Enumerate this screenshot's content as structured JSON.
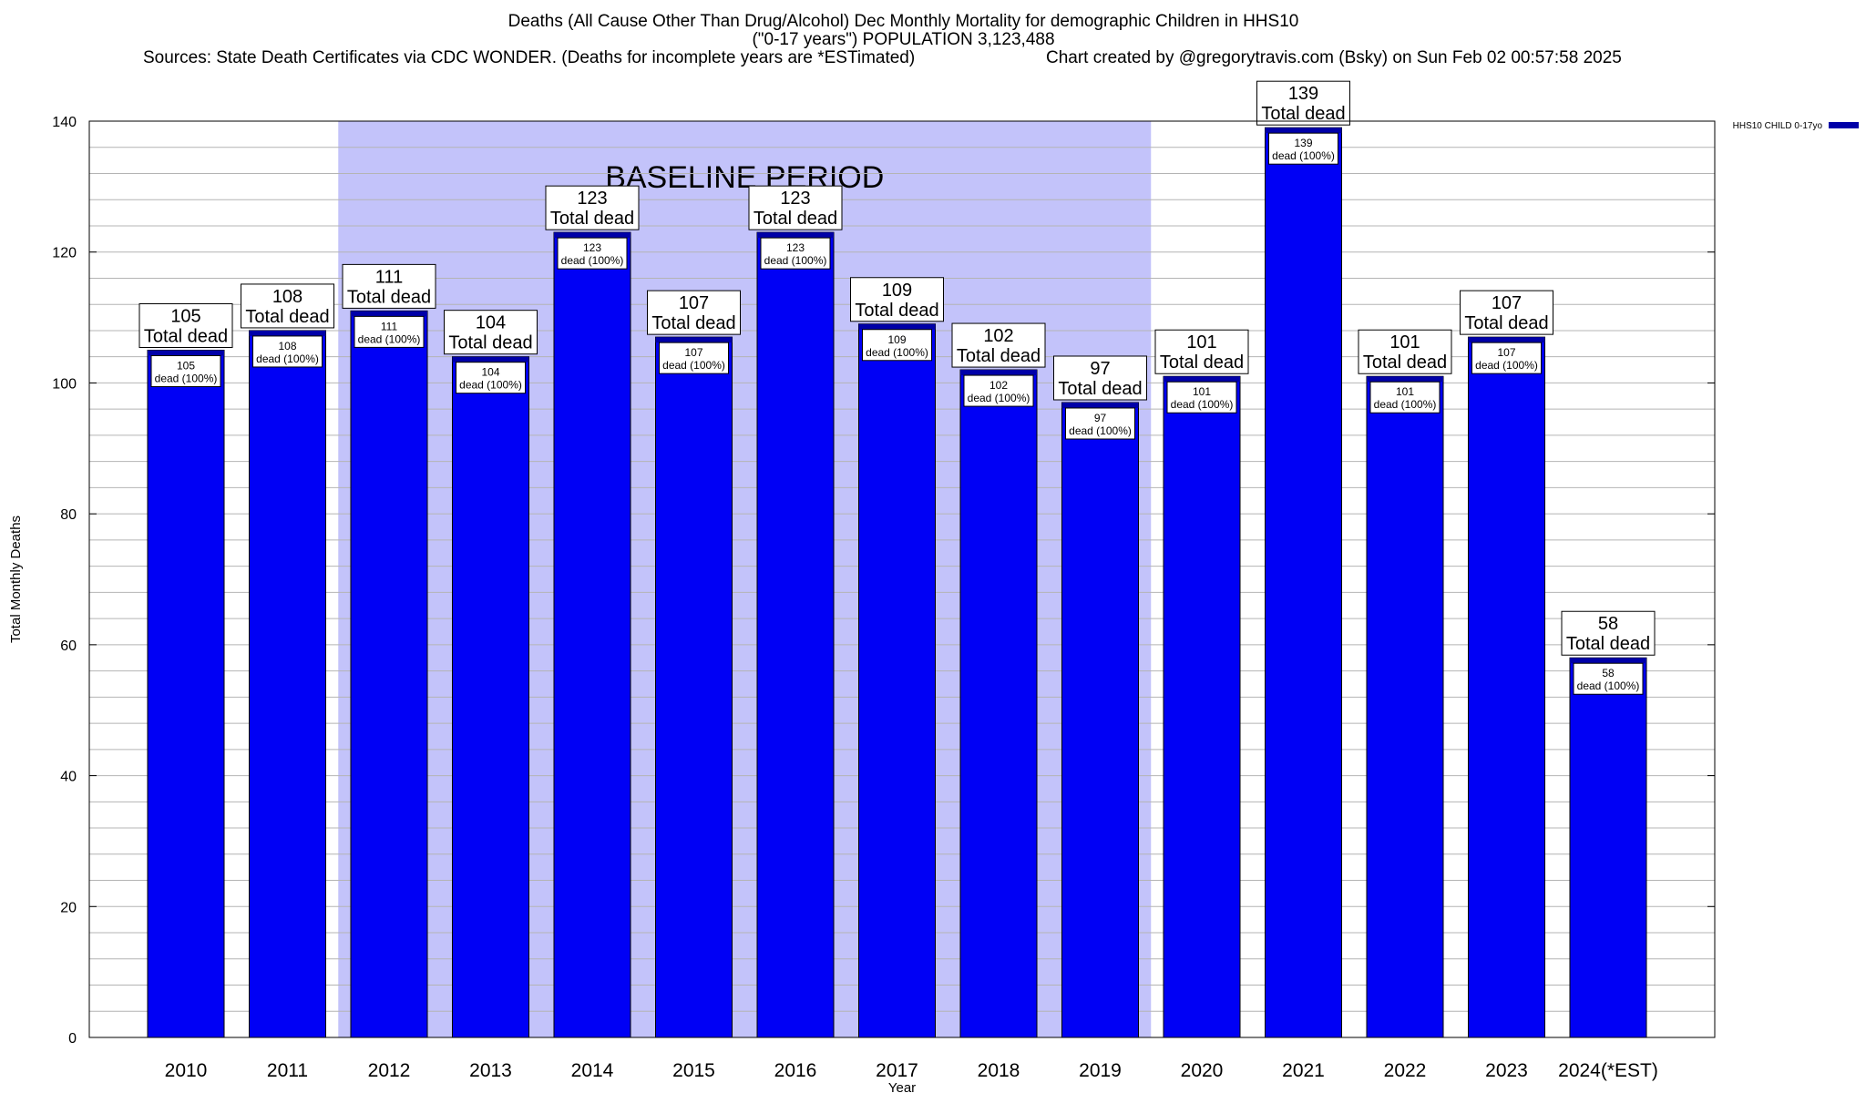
{
  "header": {
    "title_line1": "Deaths (All Cause Other Than Drug/Alcohol) Dec Monthly Mortality for demographic Children in HHS10",
    "title_line2": "(\"0-17 years\") POPULATION 3,123,488",
    "sources": "Sources: State Death Certificates via CDC WONDER. (Deaths for incomplete years are *ESTimated)",
    "credit": "Chart created by @gregorytravis.com (Bsky) on Sun Feb 02 00:57:58 2025"
  },
  "chart_data": {
    "type": "bar",
    "categories": [
      "2010",
      "2011",
      "2012",
      "2013",
      "2014",
      "2015",
      "2016",
      "2017",
      "2018",
      "2019",
      "2020",
      "2021",
      "2022",
      "2023",
      "2024(*EST)"
    ],
    "series": [
      {
        "name": "HHS10 CHILD 0-17yo",
        "values": [
          105,
          108,
          111,
          104,
          123,
          107,
          123,
          109,
          102,
          97,
          101,
          139,
          101,
          107,
          58
        ]
      }
    ],
    "top_label_suffix": "Total dead",
    "inner_label_suffix": "dead (100%)",
    "xlabel": "Year",
    "ylabel": "Total Monthly Deaths",
    "ylim": [
      0,
      140
    ],
    "yticks": [
      0,
      20,
      40,
      60,
      80,
      100,
      120,
      140
    ],
    "y_minor_step": 4,
    "grid": true,
    "legend_position": "top-right",
    "baseline_period": {
      "label": "BASELINE PERIOD",
      "from": "2012",
      "to": "2019"
    },
    "colors": {
      "bar": "#0000f5",
      "bar_top": "#0000a8",
      "baseline_shade": "#c3c3fa",
      "grid": "#b4b4b4"
    }
  }
}
